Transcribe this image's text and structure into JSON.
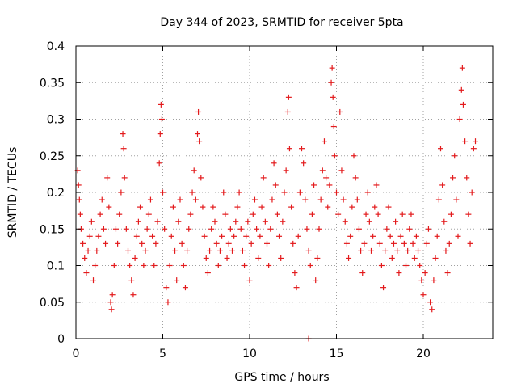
{
  "chart_data": {
    "type": "scatter",
    "title": "Day 344 of 2023, SRMTID for receiver 5pta",
    "xlabel": "GPS time / hours",
    "ylabel": "SRMTID / TECUs",
    "xlim": [
      0,
      24
    ],
    "ylim": [
      0,
      0.4
    ],
    "xticks": [
      0,
      5,
      10,
      15,
      20
    ],
    "xtick_labels": [
      "0",
      "5",
      "10",
      "15",
      "20"
    ],
    "yticks": [
      0,
      0.05,
      0.1,
      0.15,
      0.2,
      0.25,
      0.3,
      0.35,
      0.4
    ],
    "ytick_labels": [
      "0",
      "0.05",
      "0.1",
      "0.15",
      "0.2",
      "0.25",
      "0.3",
      "0.35",
      "0.4"
    ],
    "grid": true,
    "marker": "+",
    "color": "#e31a1c",
    "series": [
      {
        "name": "SRMTID",
        "points": [
          [
            0.1,
            0.23
          ],
          [
            0.15,
            0.21
          ],
          [
            0.2,
            0.19
          ],
          [
            0.25,
            0.17
          ],
          [
            0.3,
            0.15
          ],
          [
            0.4,
            0.13
          ],
          [
            0.5,
            0.11
          ],
          [
            0.6,
            0.09
          ],
          [
            0.7,
            0.12
          ],
          [
            0.8,
            0.14
          ],
          [
            0.9,
            0.16
          ],
          [
            1.0,
            0.08
          ],
          [
            1.1,
            0.1
          ],
          [
            1.2,
            0.12
          ],
          [
            1.3,
            0.14
          ],
          [
            1.4,
            0.17
          ],
          [
            1.5,
            0.19
          ],
          [
            1.6,
            0.15
          ],
          [
            1.7,
            0.13
          ],
          [
            1.8,
            0.22
          ],
          [
            1.9,
            0.18
          ],
          [
            2.0,
            0.05
          ],
          [
            2.05,
            0.04
          ],
          [
            2.1,
            0.06
          ],
          [
            2.2,
            0.1
          ],
          [
            2.3,
            0.15
          ],
          [
            2.4,
            0.13
          ],
          [
            2.5,
            0.17
          ],
          [
            2.6,
            0.2
          ],
          [
            2.7,
            0.28
          ],
          [
            2.75,
            0.26
          ],
          [
            2.8,
            0.22
          ],
          [
            2.9,
            0.15
          ],
          [
            3.0,
            0.12
          ],
          [
            3.1,
            0.1
          ],
          [
            3.2,
            0.08
          ],
          [
            3.3,
            0.06
          ],
          [
            3.4,
            0.11
          ],
          [
            3.5,
            0.14
          ],
          [
            3.6,
            0.16
          ],
          [
            3.7,
            0.18
          ],
          [
            3.8,
            0.13
          ],
          [
            3.9,
            0.1
          ],
          [
            4.0,
            0.12
          ],
          [
            4.1,
            0.15
          ],
          [
            4.2,
            0.17
          ],
          [
            4.3,
            0.19
          ],
          [
            4.4,
            0.14
          ],
          [
            4.5,
            0.1
          ],
          [
            4.6,
            0.13
          ],
          [
            4.7,
            0.16
          ],
          [
            4.8,
            0.24
          ],
          [
            4.85,
            0.28
          ],
          [
            4.9,
            0.32
          ],
          [
            4.95,
            0.3
          ],
          [
            5.0,
            0.2
          ],
          [
            5.1,
            0.15
          ],
          [
            5.2,
            0.07
          ],
          [
            5.3,
            0.05
          ],
          [
            5.4,
            0.1
          ],
          [
            5.5,
            0.14
          ],
          [
            5.6,
            0.18
          ],
          [
            5.7,
            0.12
          ],
          [
            5.8,
            0.08
          ],
          [
            5.9,
            0.16
          ],
          [
            6.0,
            0.19
          ],
          [
            6.1,
            0.13
          ],
          [
            6.2,
            0.1
          ],
          [
            6.3,
            0.07
          ],
          [
            6.4,
            0.12
          ],
          [
            6.5,
            0.15
          ],
          [
            6.6,
            0.17
          ],
          [
            6.7,
            0.2
          ],
          [
            6.8,
            0.23
          ],
          [
            6.9,
            0.19
          ],
          [
            7.0,
            0.28
          ],
          [
            7.05,
            0.31
          ],
          [
            7.1,
            0.27
          ],
          [
            7.2,
            0.22
          ],
          [
            7.3,
            0.18
          ],
          [
            7.4,
            0.14
          ],
          [
            7.5,
            0.11
          ],
          [
            7.6,
            0.09
          ],
          [
            7.7,
            0.12
          ],
          [
            7.8,
            0.15
          ],
          [
            7.9,
            0.18
          ],
          [
            8.0,
            0.16
          ],
          [
            8.1,
            0.13
          ],
          [
            8.2,
            0.1
          ],
          [
            8.3,
            0.12
          ],
          [
            8.4,
            0.14
          ],
          [
            8.5,
            0.2
          ],
          [
            8.6,
            0.17
          ],
          [
            8.7,
            0.11
          ],
          [
            8.8,
            0.13
          ],
          [
            8.9,
            0.15
          ],
          [
            9.0,
            0.12
          ],
          [
            9.1,
            0.14
          ],
          [
            9.2,
            0.16
          ],
          [
            9.3,
            0.18
          ],
          [
            9.4,
            0.2
          ],
          [
            9.5,
            0.15
          ],
          [
            9.6,
            0.12
          ],
          [
            9.7,
            0.1
          ],
          [
            9.8,
            0.14
          ],
          [
            9.9,
            0.16
          ],
          [
            10.0,
            0.08
          ],
          [
            10.1,
            0.13
          ],
          [
            10.2,
            0.17
          ],
          [
            10.3,
            0.19
          ],
          [
            10.4,
            0.15
          ],
          [
            10.5,
            0.11
          ],
          [
            10.6,
            0.14
          ],
          [
            10.7,
            0.18
          ],
          [
            10.8,
            0.22
          ],
          [
            10.9,
            0.16
          ],
          [
            11.0,
            0.13
          ],
          [
            11.1,
            0.1
          ],
          [
            11.2,
            0.15
          ],
          [
            11.3,
            0.19
          ],
          [
            11.4,
            0.24
          ],
          [
            11.5,
            0.21
          ],
          [
            11.6,
            0.17
          ],
          [
            11.7,
            0.14
          ],
          [
            11.8,
            0.11
          ],
          [
            11.9,
            0.16
          ],
          [
            12.0,
            0.2
          ],
          [
            12.1,
            0.23
          ],
          [
            12.2,
            0.31
          ],
          [
            12.25,
            0.33
          ],
          [
            12.3,
            0.26
          ],
          [
            12.4,
            0.18
          ],
          [
            12.5,
            0.13
          ],
          [
            12.6,
            0.09
          ],
          [
            12.7,
            0.07
          ],
          [
            12.8,
            0.14
          ],
          [
            12.9,
            0.2
          ],
          [
            13.0,
            0.26
          ],
          [
            13.1,
            0.24
          ],
          [
            13.2,
            0.19
          ],
          [
            13.3,
            0.15
          ],
          [
            13.4,
            0.12
          ],
          [
            13.5,
            0.1
          ],
          [
            13.6,
            0.17
          ],
          [
            13.7,
            0.21
          ],
          [
            13.8,
            0.08
          ],
          [
            13.9,
            0.11
          ],
          [
            14.0,
            0.15
          ],
          [
            14.1,
            0.19
          ],
          [
            14.2,
            0.23
          ],
          [
            14.3,
            0.27
          ],
          [
            14.4,
            0.22
          ],
          [
            14.5,
            0.18
          ],
          [
            14.6,
            0.21
          ],
          [
            14.7,
            0.35
          ],
          [
            14.75,
            0.37
          ],
          [
            14.8,
            0.33
          ],
          [
            14.85,
            0.29
          ],
          [
            14.9,
            0.25
          ],
          [
            15.0,
            0.2
          ],
          [
            15.1,
            0.17
          ],
          [
            15.2,
            0.31
          ],
          [
            15.3,
            0.23
          ],
          [
            15.4,
            0.19
          ],
          [
            15.5,
            0.16
          ],
          [
            15.6,
            0.13
          ],
          [
            15.7,
            0.11
          ],
          [
            15.8,
            0.14
          ],
          [
            15.9,
            0.18
          ],
          [
            16.0,
            0.25
          ],
          [
            16.1,
            0.22
          ],
          [
            16.2,
            0.19
          ],
          [
            16.3,
            0.15
          ],
          [
            16.4,
            0.12
          ],
          [
            16.5,
            0.09
          ],
          [
            16.6,
            0.13
          ],
          [
            16.7,
            0.17
          ],
          [
            16.8,
            0.2
          ],
          [
            16.9,
            0.16
          ],
          [
            17.0,
            0.12
          ],
          [
            17.1,
            0.14
          ],
          [
            17.2,
            0.18
          ],
          [
            17.3,
            0.21
          ],
          [
            17.4,
            0.17
          ],
          [
            17.5,
            0.13
          ],
          [
            17.6,
            0.1
          ],
          [
            17.7,
            0.07
          ],
          [
            17.8,
            0.12
          ],
          [
            17.9,
            0.15
          ],
          [
            18.0,
            0.18
          ],
          [
            18.1,
            0.14
          ],
          [
            18.2,
            0.11
          ],
          [
            18.3,
            0.13
          ],
          [
            18.4,
            0.16
          ],
          [
            18.5,
            0.12
          ],
          [
            18.6,
            0.09
          ],
          [
            18.7,
            0.14
          ],
          [
            18.8,
            0.17
          ],
          [
            18.9,
            0.13
          ],
          [
            19.0,
            0.1
          ],
          [
            19.1,
            0.12
          ],
          [
            19.2,
            0.15
          ],
          [
            19.3,
            0.17
          ],
          [
            19.4,
            0.13
          ],
          [
            19.5,
            0.11
          ],
          [
            19.6,
            0.14
          ],
          [
            19.7,
            0.12
          ],
          [
            19.8,
            0.1
          ],
          [
            19.9,
            0.08
          ],
          [
            20.0,
            0.06
          ],
          [
            20.1,
            0.09
          ],
          [
            20.2,
            0.13
          ],
          [
            20.3,
            0.15
          ],
          [
            20.4,
            0.05
          ],
          [
            20.5,
            0.04
          ],
          [
            20.6,
            0.08
          ],
          [
            20.7,
            0.11
          ],
          [
            20.8,
            0.14
          ],
          [
            20.9,
            0.19
          ],
          [
            21.0,
            0.26
          ],
          [
            21.1,
            0.21
          ],
          [
            21.2,
            0.16
          ],
          [
            21.3,
            0.12
          ],
          [
            21.4,
            0.09
          ],
          [
            21.5,
            0.13
          ],
          [
            21.6,
            0.17
          ],
          [
            21.7,
            0.22
          ],
          [
            21.8,
            0.25
          ],
          [
            21.9,
            0.19
          ],
          [
            22.0,
            0.14
          ],
          [
            22.1,
            0.3
          ],
          [
            22.2,
            0.34
          ],
          [
            22.25,
            0.37
          ],
          [
            22.3,
            0.32
          ],
          [
            22.4,
            0.27
          ],
          [
            22.5,
            0.22
          ],
          [
            22.6,
            0.17
          ],
          [
            22.7,
            0.13
          ],
          [
            22.8,
            0.2
          ],
          [
            22.9,
            0.26
          ],
          [
            23.0,
            0.27
          ],
          [
            13.4,
            0.0
          ]
        ]
      }
    ]
  }
}
